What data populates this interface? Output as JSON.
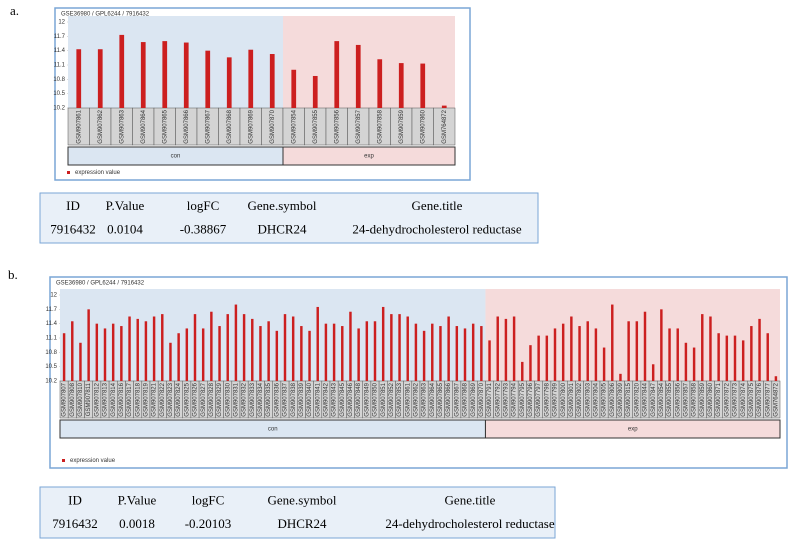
{
  "charts": [
    {
      "panel": "a.",
      "chart_data": {
        "type": "bar",
        "title": "GSE36980 / GPL6244 / 7916432",
        "legend": "expression value",
        "color": "#cc1f1f",
        "ylim": [
          10.2,
          12
        ],
        "yticks": [
          10.2,
          10.5,
          10.8,
          11.1,
          11.4,
          11.7,
          12
        ],
        "grid": false,
        "series": [
          {
            "name": "con",
            "color": "#dbe6f2",
            "categories": [
              "GSM907861",
              "GSM907862",
              "GSM907863",
              "GSM907864",
              "GSM907865",
              "GSM907866",
              "GSM907867",
              "GSM907868",
              "GSM907869",
              "GSM907870"
            ],
            "values": [
              11.43,
              11.43,
              11.73,
              11.58,
              11.6,
              11.57,
              11.4,
              11.26,
              11.42,
              11.33
            ]
          },
          {
            "name": "exp",
            "color": "#f5dbdb",
            "categories": [
              "GSM907854",
              "GSM907855",
              "GSM907856",
              "GSM907857",
              "GSM907858",
              "GSM907859",
              "GSM907860",
              "GSM764872"
            ],
            "values": [
              11.0,
              10.87,
              11.6,
              11.52,
              11.22,
              11.14,
              11.13,
              10.25
            ]
          }
        ]
      },
      "table": {
        "header": [
          "ID",
          "P.Value",
          "logFC",
          "Gene.symbol",
          "Gene.title"
        ],
        "rows": [
          [
            "7916432",
            "0.0104",
            "-0.38867",
            "DHCR24",
            "24-dehydrocholesterol reductase"
          ]
        ]
      }
    },
    {
      "panel": "b.",
      "chart_data": {
        "type": "bar",
        "title": "GSE36980 / GPL6244 / 7916432",
        "legend": "expression value",
        "color": "#cc1f1f",
        "ylim": [
          10.2,
          12
        ],
        "yticks": [
          10.2,
          10.5,
          10.8,
          11.1,
          11.4,
          11.7,
          12
        ],
        "grid": false,
        "series": [
          {
            "name": "con",
            "color": "#dbe6f2",
            "categories": [
              "GSM907807",
              "GSM907808",
              "GSM907810",
              "GSM907811",
              "GSM907812",
              "GSM907813",
              "GSM907814",
              "GSM907816",
              "GSM907817",
              "GSM907818",
              "GSM907819",
              "GSM907821",
              "GSM907822",
              "GSM907823",
              "GSM907824",
              "GSM907825",
              "GSM907826",
              "GSM907827",
              "GSM907828",
              "GSM907829",
              "GSM907830",
              "GSM907831",
              "GSM907832",
              "GSM907833",
              "GSM907834",
              "GSM907835",
              "GSM907836",
              "GSM907837",
              "GSM907838",
              "GSM907839",
              "GSM907840",
              "GSM907841",
              "GSM907842",
              "GSM907843",
              "GSM907845",
              "GSM907846",
              "GSM907848",
              "GSM907849",
              "GSM907850",
              "GSM907851",
              "GSM907852",
              "GSM907853",
              "GSM907861",
              "GSM907862",
              "GSM907863",
              "GSM907864",
              "GSM907865",
              "GSM907866",
              "GSM907867",
              "GSM907868",
              "GSM907869",
              "GSM907870"
            ],
            "values": [
              11.2,
              11.45,
              11.0,
              11.7,
              11.4,
              11.3,
              11.4,
              11.35,
              11.55,
              11.5,
              11.45,
              11.55,
              11.6,
              11.0,
              11.2,
              11.3,
              11.6,
              11.3,
              11.65,
              11.35,
              11.6,
              11.8,
              11.6,
              11.5,
              11.35,
              11.45,
              11.25,
              11.6,
              11.55,
              11.35,
              11.25,
              11.75,
              11.4,
              11.4,
              11.35,
              11.65,
              11.3,
              11.45,
              11.45,
              11.75,
              11.6,
              11.6,
              11.55,
              11.4,
              11.25,
              11.4,
              11.35,
              11.55,
              11.35,
              11.3,
              11.4,
              11.35
            ]
          },
          {
            "name": "exp",
            "color": "#f5dbdb",
            "categories": [
              "GSM907791",
              "GSM907792",
              "GSM907793",
              "GSM907794",
              "GSM907795",
              "GSM907796",
              "GSM907797",
              "GSM907798",
              "GSM907799",
              "GSM907800",
              "GSM907801",
              "GSM907802",
              "GSM907803",
              "GSM907804",
              "GSM907805",
              "GSM907806",
              "GSM907809",
              "GSM907815",
              "GSM907820",
              "GSM907844",
              "GSM907847",
              "GSM907854",
              "GSM907855",
              "GSM907856",
              "GSM907857",
              "GSM907858",
              "GSM907859",
              "GSM907860",
              "GSM907871",
              "GSM907872",
              "GSM907873",
              "GSM907874",
              "GSM907875",
              "GSM907876",
              "GSM907877",
              "GSM764872"
            ],
            "values": [
              11.05,
              11.55,
              11.5,
              11.55,
              10.6,
              10.95,
              11.15,
              11.15,
              11.3,
              11.4,
              11.55,
              11.35,
              11.45,
              11.3,
              10.9,
              11.8,
              10.35,
              11.45,
              11.45,
              11.65,
              10.55,
              11.7,
              11.3,
              11.3,
              11.0,
              10.9,
              11.6,
              11.55,
              11.2,
              11.15,
              11.15,
              11.05,
              11.35,
              11.5,
              11.2,
              10.3
            ]
          }
        ]
      },
      "table": {
        "header": [
          "ID",
          "P.Value",
          "logFC",
          "Gene.symbol",
          "Gene.title"
        ],
        "rows": [
          [
            "7916432",
            "0.0018",
            "-0.20103",
            "DHCR24",
            "24-dehydrocholesterol reductase"
          ]
        ]
      }
    }
  ]
}
